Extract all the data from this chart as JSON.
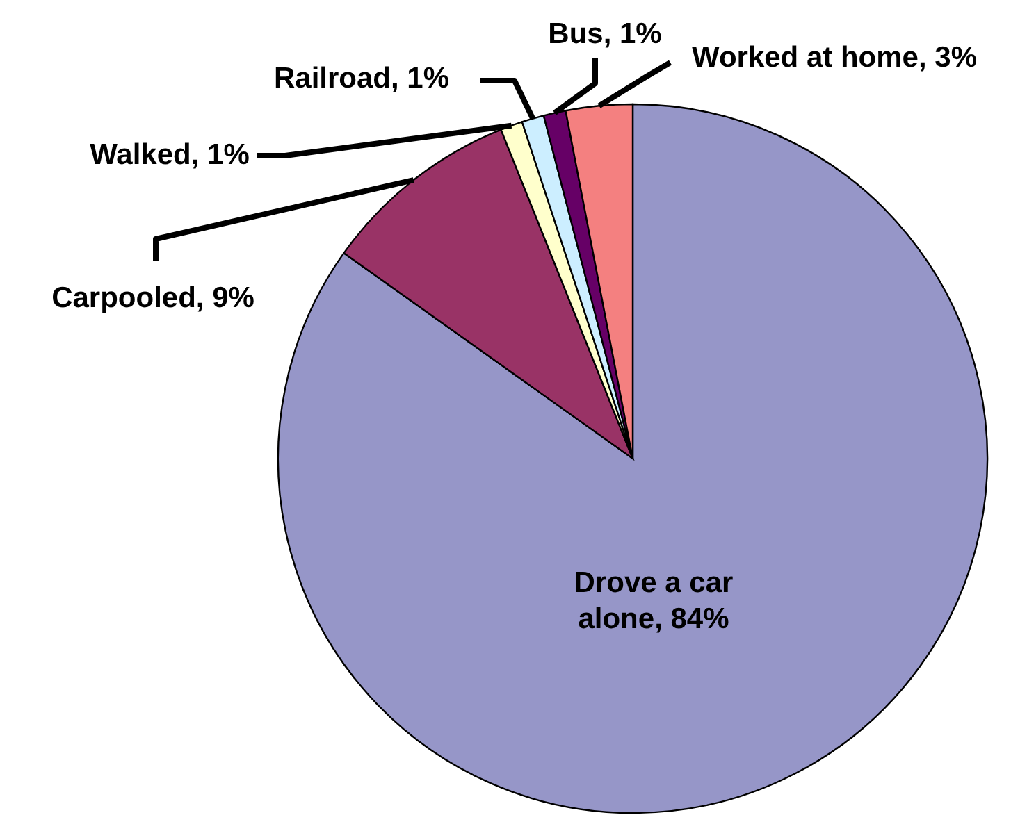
{
  "chart_data": {
    "type": "pie",
    "categories": [
      "Drove a car alone",
      "Carpooled",
      "Walked",
      "Railroad",
      "Bus",
      "Worked at home"
    ],
    "values": [
      84,
      9,
      1,
      1,
      1,
      3
    ],
    "value_labels": [
      "84%",
      "9%",
      "1%",
      "1%",
      "1%",
      "3%"
    ],
    "colors": [
      "#9696c8",
      "#993366",
      "#ffffcc",
      "#cceeff",
      "#660066",
      "#f48080"
    ]
  }
}
